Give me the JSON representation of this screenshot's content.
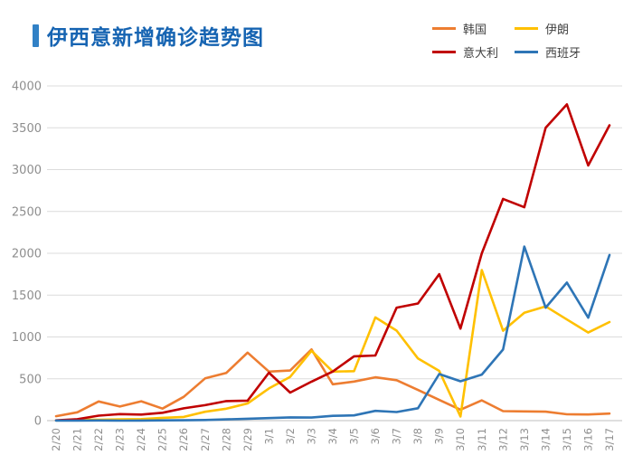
{
  "colors": {
    "title_text": "#1664B2",
    "title_bar": "#3181C6",
    "axis_text": "#8E8E8E",
    "gridline": "#DCDCDC"
  },
  "chart_data": {
    "type": "line",
    "title": "伊西意新增确诊趋势图",
    "xlabel": "",
    "ylabel": "",
    "ylim": [
      0,
      4000
    ],
    "yticks": [
      0,
      500,
      1000,
      1500,
      2000,
      2500,
      3000,
      3500,
      4000
    ],
    "grid": true,
    "legend_position": "top-right",
    "x_label_rotation": -90,
    "categories": [
      "2/20",
      "2/21",
      "2/22",
      "2/23",
      "2/24",
      "2/25",
      "2/26",
      "2/27",
      "2/28",
      "2/29",
      "3/1",
      "3/2",
      "3/3",
      "3/4",
      "3/5",
      "3/6",
      "3/7",
      "3/8",
      "3/9",
      "3/10",
      "3/11",
      "3/12",
      "3/13",
      "3/14",
      "3/15",
      "3/16",
      "3/17"
    ],
    "series": [
      {
        "key": "korea",
        "name": "韩国",
        "color": "#ED7D31",
        "values": [
          53,
          100,
          229,
          169,
          231,
          144,
          284,
          505,
          571,
          813,
          586,
          599,
          851,
          435,
          467,
          518,
          483,
          367,
          248,
          131,
          242,
          114,
          110,
          107,
          76,
          74,
          84
        ]
      },
      {
        "key": "iran",
        "name": "伊朗",
        "color": "#FFC000",
        "values": [
          2,
          13,
          10,
          15,
          18,
          34,
          44,
          106,
          143,
          205,
          385,
          523,
          835,
          586,
          591,
          1234,
          1076,
          743,
          595,
          50,
          1800,
          1075,
          1289,
          1365,
          1209,
          1053,
          1178
        ]
      },
      {
        "key": "italy",
        "name": "意大利",
        "color": "#C00000",
        "values": [
          3,
          17,
          59,
          78,
          72,
          94,
          147,
          185,
          234,
          239,
          573,
          335,
          466,
          587,
          769,
          778,
          1350,
          1400,
          1750,
          1100,
          2000,
          2650,
          2550,
          3500,
          3780,
          3050,
          3530
        ]
      },
      {
        "key": "spain",
        "name": "西班牙",
        "color": "#2E75B6",
        "values": [
          1,
          0,
          2,
          0,
          1,
          3,
          4,
          8,
          15,
          23,
          30,
          39,
          37,
          57,
          63,
          117,
          103,
          148,
          557,
          470,
          550,
          850,
          2080,
          1350,
          1650,
          1230,
          1980
        ]
      }
    ]
  }
}
